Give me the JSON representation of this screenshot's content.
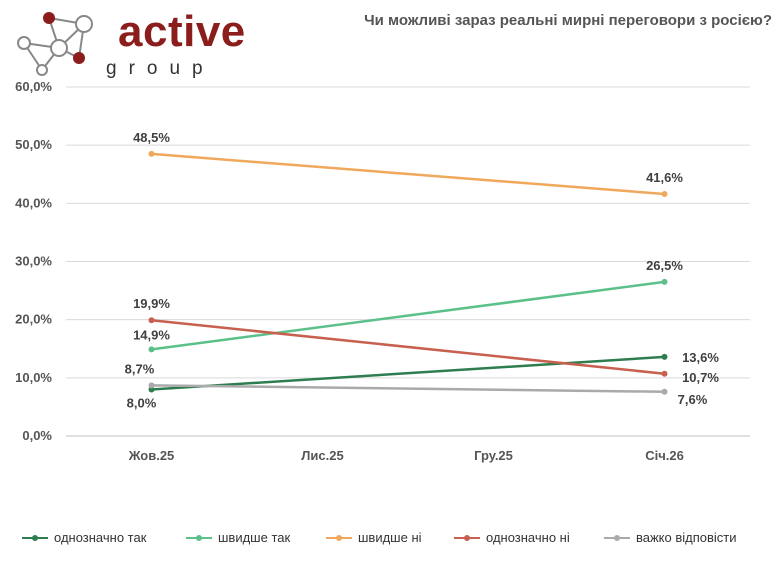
{
  "header": {
    "brand": "active",
    "brand_sub": "group",
    "title": "Чи можливі зараз реальні мирні переговори з росією?"
  },
  "colors": {
    "brand": "#8b1d1d",
    "brand_node": "#8b1d1d"
  },
  "chart_data": {
    "type": "line",
    "title": "Чи можливі зараз реальні мирні переговори з росією?",
    "xlabel": "",
    "ylabel": "",
    "categories": [
      "Жов.25",
      "Лис.25",
      "Гру.25",
      "Січ.26"
    ],
    "ylim": [
      0,
      60
    ],
    "yticks": [
      "0,0%",
      "10,0%",
      "20,0%",
      "30,0%",
      "40,0%",
      "50,0%",
      "60,0%"
    ],
    "grid": true,
    "legend_position": "bottom",
    "series": [
      {
        "name": "однозначно так",
        "color": "#2e7d4f",
        "values": [
          8.0,
          null,
          null,
          13.6
        ],
        "labels": [
          "8,0%",
          "",
          "",
          "13,6%"
        ]
      },
      {
        "name": "швидше так",
        "color": "#5cc08a",
        "values": [
          14.9,
          null,
          null,
          26.5
        ],
        "labels": [
          "14,9%",
          "",
          "",
          "26,5%"
        ]
      },
      {
        "name": "швидше ні",
        "color": "#f0a85c",
        "values": [
          48.5,
          null,
          null,
          41.6
        ],
        "labels": [
          "48,5%",
          "",
          "",
          "41,6%"
        ]
      },
      {
        "name": "однозначно ні",
        "color": "#c8604f",
        "values": [
          19.9,
          null,
          null,
          10.7
        ],
        "labels": [
          "19,9%",
          "",
          "",
          "10,7%"
        ]
      },
      {
        "name": "важко відповісти",
        "color": "#aaaaaa",
        "values": [
          8.7,
          null,
          null,
          7.6
        ],
        "labels": [
          "8,7%",
          "",
          "",
          "7,6%"
        ]
      }
    ]
  }
}
